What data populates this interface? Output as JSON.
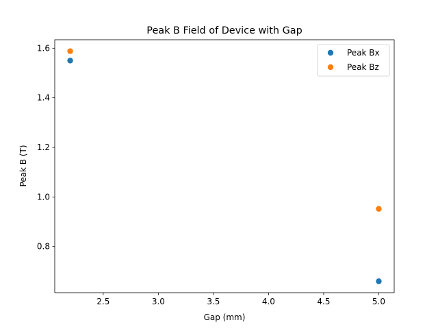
{
  "chart_data": {
    "type": "scatter",
    "title": "Peak B Field of Device with Gap",
    "xlabel": "Gap (mm)",
    "ylabel": "Peak B (T)",
    "xlim": [
      2.06,
      5.14
    ],
    "ylim": [
      0.614,
      1.634
    ],
    "xticks": [
      2.5,
      3.0,
      3.5,
      4.0,
      4.5,
      5.0
    ],
    "xtick_labels": [
      "2.5",
      "3.0",
      "3.5",
      "4.0",
      "4.5",
      "5.0"
    ],
    "yticks": [
      0.8,
      1.0,
      1.2,
      1.4,
      1.6
    ],
    "ytick_labels": [
      "0.8",
      "1.0",
      "1.2",
      "1.4",
      "1.6"
    ],
    "grid": false,
    "legend_position": "top-right",
    "series": [
      {
        "name": "Peak Bx",
        "color": "#1f77b4",
        "x": [
          2.2,
          5.0
        ],
        "y": [
          1.55,
          0.66
        ]
      },
      {
        "name": "Peak Bz",
        "color": "#ff7f0e",
        "x": [
          2.2,
          5.0
        ],
        "y": [
          1.588,
          0.952
        ]
      }
    ]
  }
}
